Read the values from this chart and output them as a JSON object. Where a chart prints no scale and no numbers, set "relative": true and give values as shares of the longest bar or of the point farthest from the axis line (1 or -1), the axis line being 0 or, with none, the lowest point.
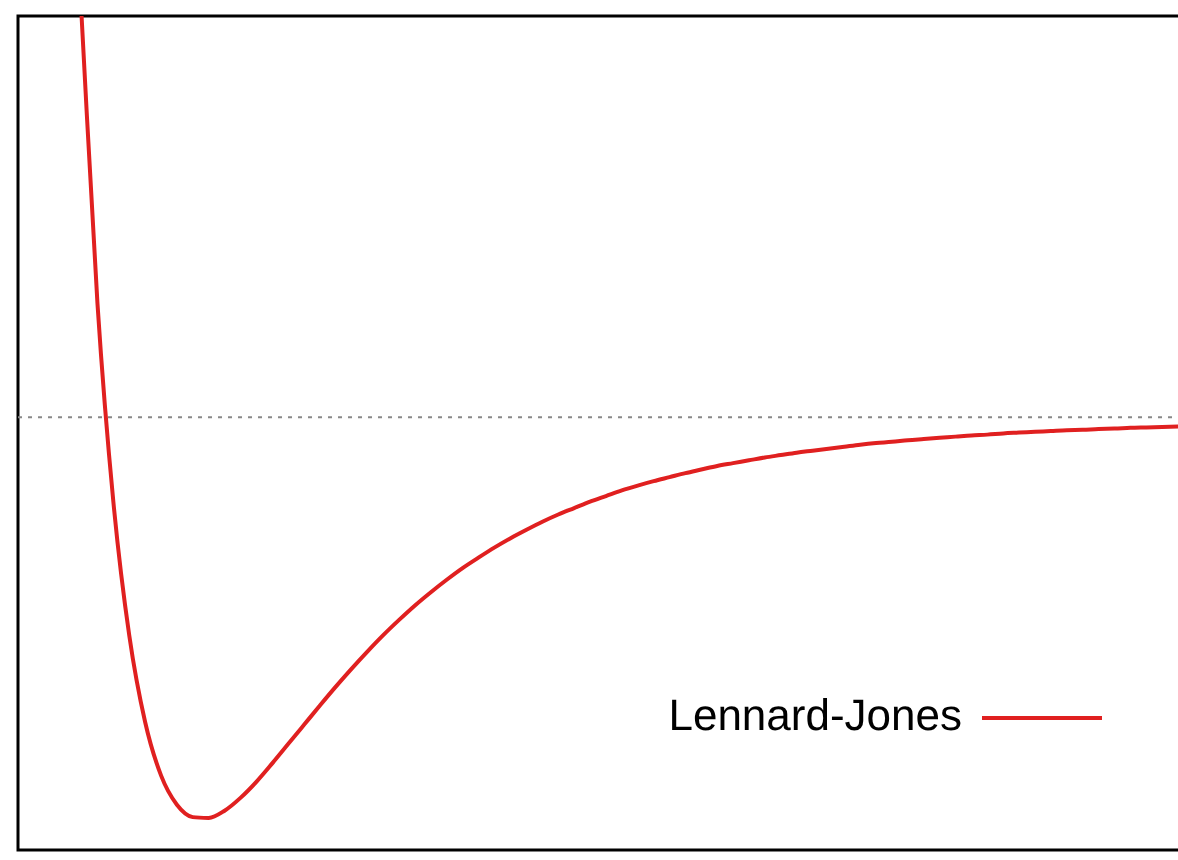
{
  "chart_data": {
    "type": "line",
    "relative": true,
    "legend": "bottom right",
    "marker": "none",
    "line_style": "solid",
    "categories": [
      null,
      null,
      null,
      null,
      null,
      null,
      null,
      null,
      null,
      null,
      null,
      null,
      null,
      null,
      null,
      null,
      null,
      null,
      null,
      null,
      null,
      null,
      null,
      null,
      null,
      null,
      null,
      null,
      null,
      null,
      null,
      null,
      null,
      null,
      null,
      null,
      null,
      null,
      null,
      null,
      null,
      null,
      null,
      null,
      null,
      null,
      null,
      null,
      null,
      null,
      null,
      null,
      null,
      null,
      null,
      null,
      null,
      null,
      null,
      null,
      null,
      null,
      null,
      null,
      null,
      null,
      null,
      null,
      null,
      null,
      null,
      null,
      null,
      null
    ],
    "series": [
      {
        "name": "Lennard-Jones",
        "color": "#e02020",
        "values": [
          null,
          null,
          null,
          null,
          1.0,
          0.284,
          -0.21,
          -0.543,
          -0.759,
          -0.892,
          -0.965,
          -0.996,
          -0.998,
          -0.98,
          -0.948,
          -0.908,
          -0.862,
          -0.814,
          -0.766,
          -0.718,
          -0.671,
          -0.626,
          -0.583,
          -0.542,
          -0.504,
          -0.468,
          -0.435,
          -0.404,
          -0.375,
          -0.349,
          -0.324,
          -0.301,
          -0.28,
          -0.26,
          -0.242,
          -0.226,
          -0.21,
          -0.196,
          -0.182,
          -0.17,
          -0.159,
          -0.149,
          -0.139,
          -0.13,
          -0.121,
          -0.114,
          -0.107,
          -0.1,
          -0.094,
          -0.088,
          -0.083,
          -0.078,
          -0.073,
          -0.068,
          -0.064,
          -0.061,
          -0.057,
          -0.054,
          -0.051,
          -0.048,
          -0.045,
          -0.043,
          -0.04,
          -0.038,
          -0.036,
          -0.034,
          -0.032,
          -0.031,
          -0.029,
          -0.028,
          -0.026,
          -0.025,
          -0.024,
          -0.023
        ]
      }
    ],
    "ref_lines": [
      {
        "axis": "y",
        "value": 0,
        "color": "#888888",
        "line_style": "dotted"
      }
    ]
  }
}
